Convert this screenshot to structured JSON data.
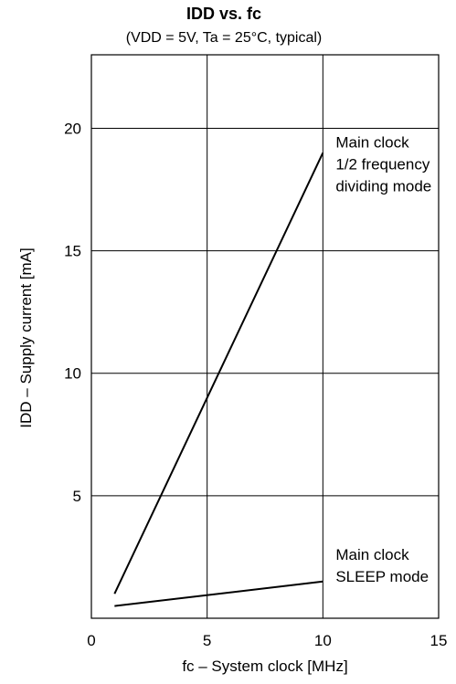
{
  "chart_data": {
    "type": "line",
    "title": "IDD vs. fc",
    "subtitle": "(VDD = 5V, Ta = 25°C, typical)",
    "xlabel": "fc – System clock [MHz]",
    "ylabel": "IDD – Supply current [mA]",
    "xlim": [
      0,
      15
    ],
    "ylim": [
      0,
      23
    ],
    "xticks": [
      0,
      5,
      10,
      15
    ],
    "yticks": [
      5,
      10,
      15,
      20
    ],
    "grid": true,
    "series": [
      {
        "x": [
          1,
          10
        ],
        "y": [
          1,
          19
        ],
        "annotation": [
          "Main clock",
          "1/2 frequency",
          "dividing mode"
        ]
      },
      {
        "x": [
          1,
          10
        ],
        "y": [
          0.5,
          1.5
        ],
        "annotation": [
          "Main clock",
          "SLEEP mode"
        ]
      }
    ]
  }
}
